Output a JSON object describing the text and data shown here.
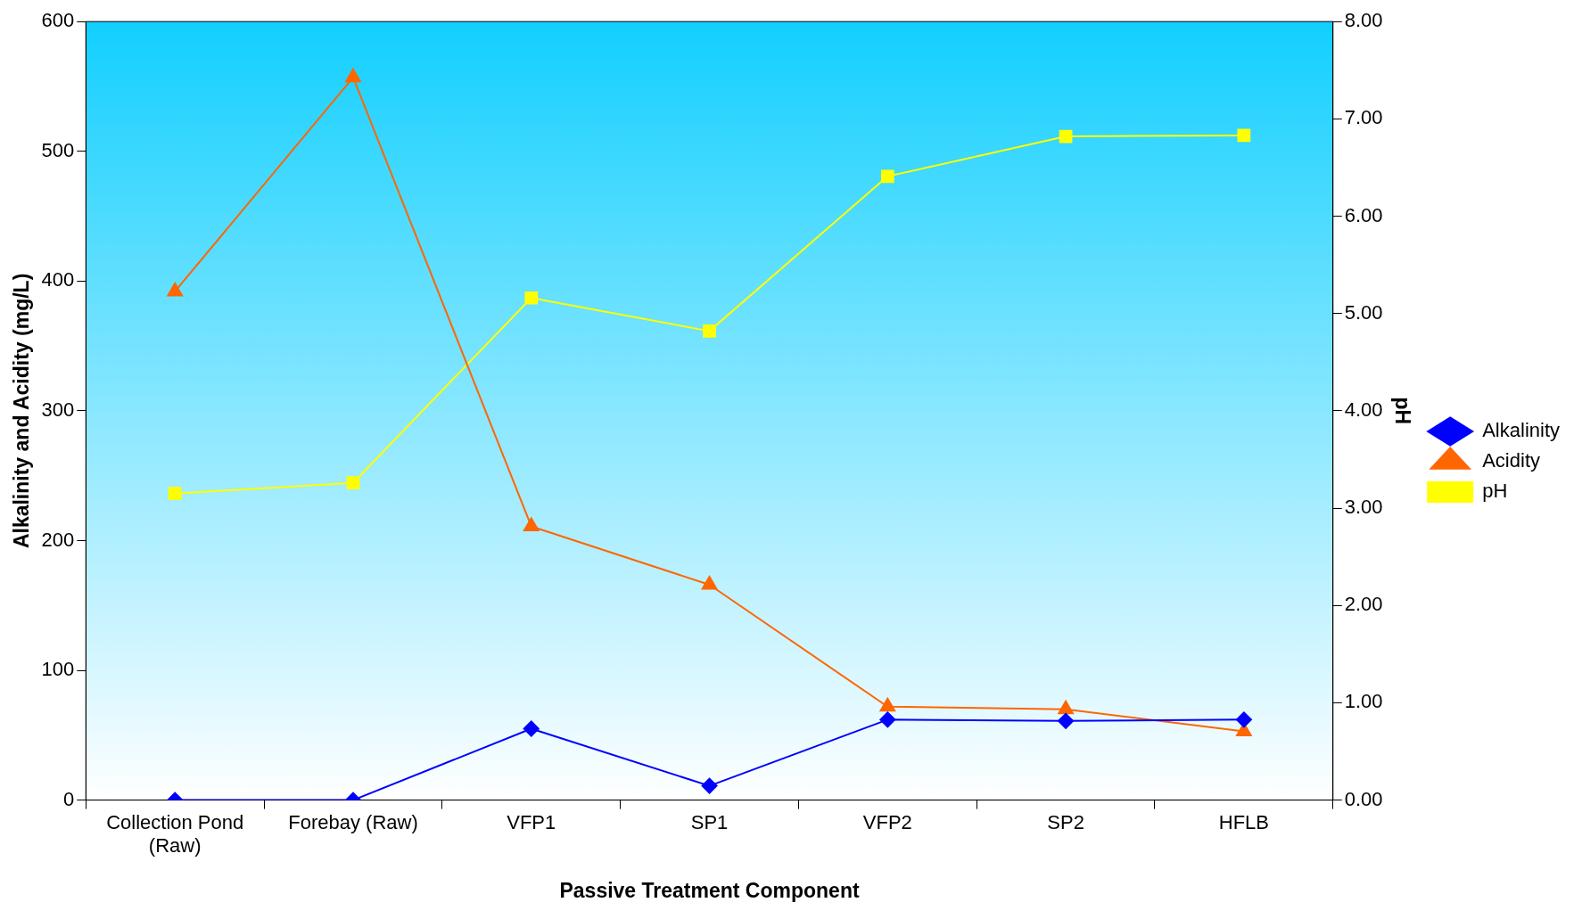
{
  "chart_data": {
    "type": "line",
    "xlabel": "Passive Treatment Component",
    "ylabel": "Alkalinity and Acidity (mg/L)",
    "y2label": "pH",
    "categories": [
      "Collection Pond (Raw)",
      "Forebay (Raw)",
      "VFP1",
      "SP1",
      "VFP2",
      "SP2",
      "HFLB"
    ],
    "series": [
      {
        "name": "Alkalinity",
        "color": "#0000ff",
        "marker": "diamond",
        "values": [
          0,
          0,
          55,
          11,
          62,
          61,
          62
        ]
      },
      {
        "name": "Acidity",
        "color": "#ff6600",
        "marker": "triangle",
        "values": [
          392,
          557,
          211,
          166,
          72,
          70,
          53
        ]
      },
      {
        "name": "pH",
        "color": "#ffff00",
        "marker": "square",
        "axis": "y2",
        "values": [
          3.15,
          3.26,
          5.16,
          4.82,
          6.41,
          6.82,
          6.83
        ]
      }
    ],
    "ylim": [
      0,
      600
    ],
    "yticks": [
      0,
      100,
      200,
      300,
      400,
      500,
      600
    ],
    "y2lim": [
      0,
      8
    ],
    "y2ticks": [
      {
        "value": 0,
        "label": "0.00"
      },
      {
        "value": 1,
        "label": "1.00"
      },
      {
        "value": 2,
        "label": "2.00"
      },
      {
        "value": 3,
        "label": "3.00"
      },
      {
        "value": 4,
        "label": "4.00"
      },
      {
        "value": 5,
        "label": "5.00"
      },
      {
        "value": 6,
        "label": "6.00"
      },
      {
        "value": 7,
        "label": "7.00"
      },
      {
        "value": 8,
        "label": "8.00"
      }
    ],
    "grid": false,
    "legend": "right"
  }
}
